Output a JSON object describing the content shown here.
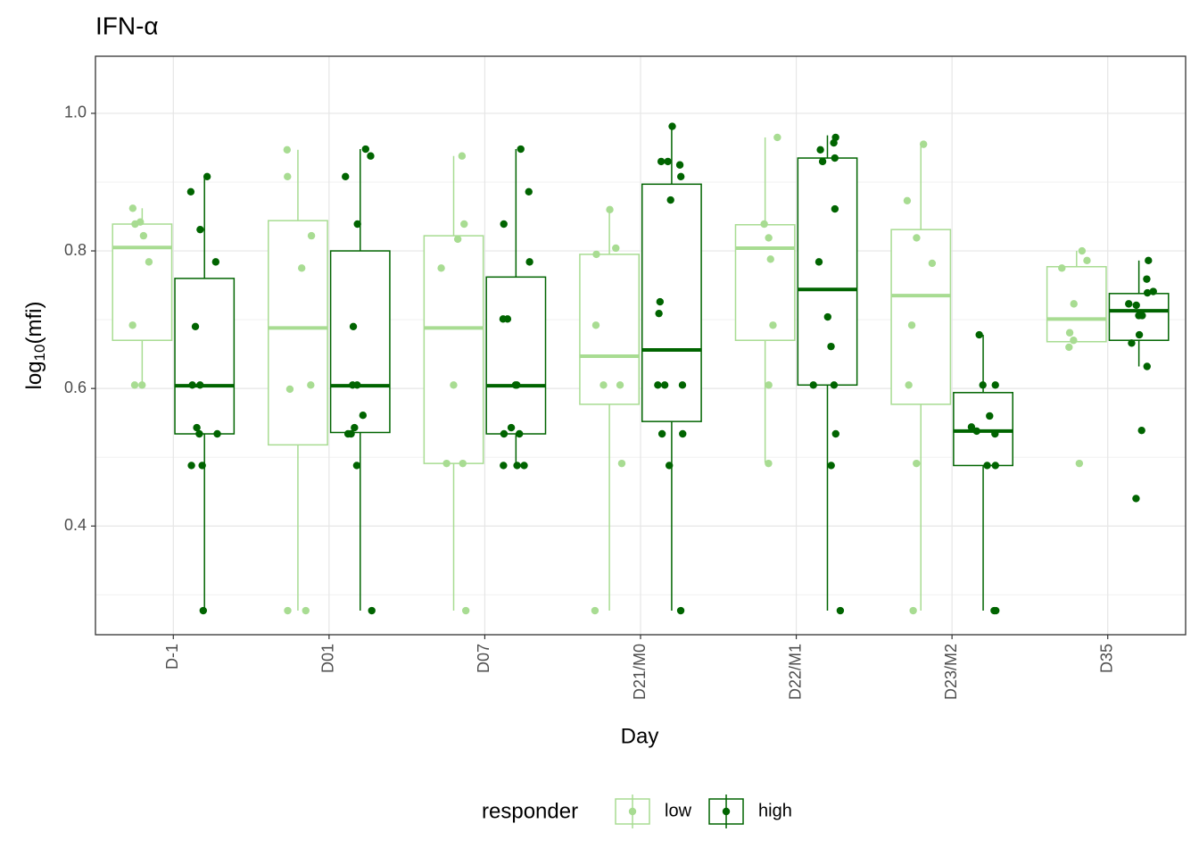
{
  "chart_data": {
    "type": "box",
    "title": "IFN-α",
    "x_label": "Day",
    "y_label": [
      "log",
      "10",
      "(mfi)"
    ],
    "legend_title": "responder",
    "legend_position": "bottom",
    "grid": true,
    "categories": [
      "D-1",
      "D01",
      "D07",
      "D21/M0",
      "D22/M1",
      "D23/M2",
      "D35"
    ],
    "ylim": [
      0.242,
      1.083
    ],
    "yticks": [
      0.4,
      0.6,
      0.8,
      {
        "value": 1,
        "label": "1.0"
      }
    ],
    "yminorticks": [
      0.3,
      0.5,
      0.7,
      0.9
    ],
    "series": [
      {
        "name": "low",
        "color": "#a8dc92",
        "boxes": [
          {
            "whisker_low": 0.605,
            "q1": 0.67,
            "median": 0.805,
            "q3": 0.839,
            "whisker_high": 0.862
          },
          {
            "whisker_low": 0.277,
            "q1": 0.518,
            "median": 0.688,
            "q3": 0.844,
            "whisker_high": 0.947
          },
          {
            "whisker_low": 0.277,
            "q1": 0.491,
            "median": 0.688,
            "q3": 0.822,
            "whisker_high": 0.938
          },
          {
            "whisker_low": 0.277,
            "q1": 0.577,
            "median": 0.647,
            "q3": 0.795,
            "whisker_high": 0.86
          },
          {
            "whisker_low": 0.492,
            "q1": 0.67,
            "median": 0.804,
            "q3": 0.838,
            "whisker_high": 0.965
          },
          {
            "whisker_low": 0.277,
            "q1": 0.577,
            "median": 0.735,
            "q3": 0.831,
            "whisker_high": 0.955
          },
          {
            "whisker_low": 0.668,
            "q1": 0.668,
            "median": 0.701,
            "q3": 0.777,
            "whisker_high": 0.8
          }
        ],
        "points": [
          [
            0.862,
            0.839,
            0.842,
            0.822,
            0.784,
            0.692,
            0.605,
            0.605
          ],
          [
            0.947,
            0.908,
            0.822,
            0.775,
            0.605,
            0.599,
            0.277,
            0.277
          ],
          [
            0.938,
            0.839,
            0.817,
            0.775,
            0.605,
            0.491,
            0.491,
            0.277
          ],
          [
            0.86,
            0.804,
            0.795,
            0.692,
            0.605,
            0.605,
            0.491,
            0.277
          ],
          [
            0.965,
            0.839,
            0.819,
            0.788,
            0.692,
            0.605,
            0.491
          ],
          [
            0.955,
            0.873,
            0.819,
            0.782,
            0.692,
            0.605,
            0.491,
            0.277
          ],
          [
            0.8,
            0.786,
            0.775,
            0.723,
            0.681,
            0.67,
            0.66,
            0.491
          ]
        ]
      },
      {
        "name": "high",
        "color": "#006400",
        "boxes": [
          {
            "whisker_low": 0.277,
            "q1": 0.534,
            "median": 0.604,
            "q3": 0.76,
            "whisker_high": 0.908
          },
          {
            "whisker_low": 0.277,
            "q1": 0.536,
            "median": 0.604,
            "q3": 0.8,
            "whisker_high": 0.948
          },
          {
            "whisker_low": 0.488,
            "q1": 0.534,
            "median": 0.604,
            "q3": 0.762,
            "whisker_high": 0.948
          },
          {
            "whisker_low": 0.277,
            "q1": 0.552,
            "median": 0.656,
            "q3": 0.897,
            "whisker_high": 0.981
          },
          {
            "whisker_low": 0.277,
            "q1": 0.605,
            "median": 0.744,
            "q3": 0.935,
            "whisker_high": 0.968
          },
          {
            "whisker_low": 0.277,
            "q1": 0.488,
            "median": 0.538,
            "q3": 0.594,
            "whisker_high": 0.678
          },
          {
            "whisker_low": 0.632,
            "q1": 0.67,
            "median": 0.713,
            "q3": 0.738,
            "whisker_high": 0.786
          }
        ],
        "points": [
          [
            0.908,
            0.886,
            0.831,
            0.784,
            0.69,
            0.605,
            0.605,
            0.543,
            0.534,
            0.534,
            0.488,
            0.488,
            0.277
          ],
          [
            0.948,
            0.938,
            0.908,
            0.839,
            0.69,
            0.605,
            0.605,
            0.561,
            0.543,
            0.534,
            0.534,
            0.488,
            0.277
          ],
          [
            0.948,
            0.886,
            0.839,
            0.784,
            0.701,
            0.701,
            0.605,
            0.605,
            0.543,
            0.534,
            0.534,
            0.488,
            0.488,
            0.488
          ],
          [
            0.981,
            0.93,
            0.93,
            0.925,
            0.908,
            0.874,
            0.726,
            0.709,
            0.605,
            0.605,
            0.605,
            0.534,
            0.534,
            0.488,
            0.277
          ],
          [
            0.965,
            0.957,
            0.935,
            0.947,
            0.93,
            0.861,
            0.784,
            0.704,
            0.661,
            0.605,
            0.605,
            0.534,
            0.488,
            0.277
          ],
          [
            0.678,
            0.605,
            0.605,
            0.56,
            0.544,
            0.538,
            0.534,
            0.488,
            0.488,
            0.277,
            0.277
          ],
          [
            0.786,
            0.759,
            0.741,
            0.739,
            0.723,
            0.721,
            0.706,
            0.706,
            0.678,
            0.666,
            0.632,
            0.539,
            0.44
          ]
        ]
      }
    ]
  }
}
